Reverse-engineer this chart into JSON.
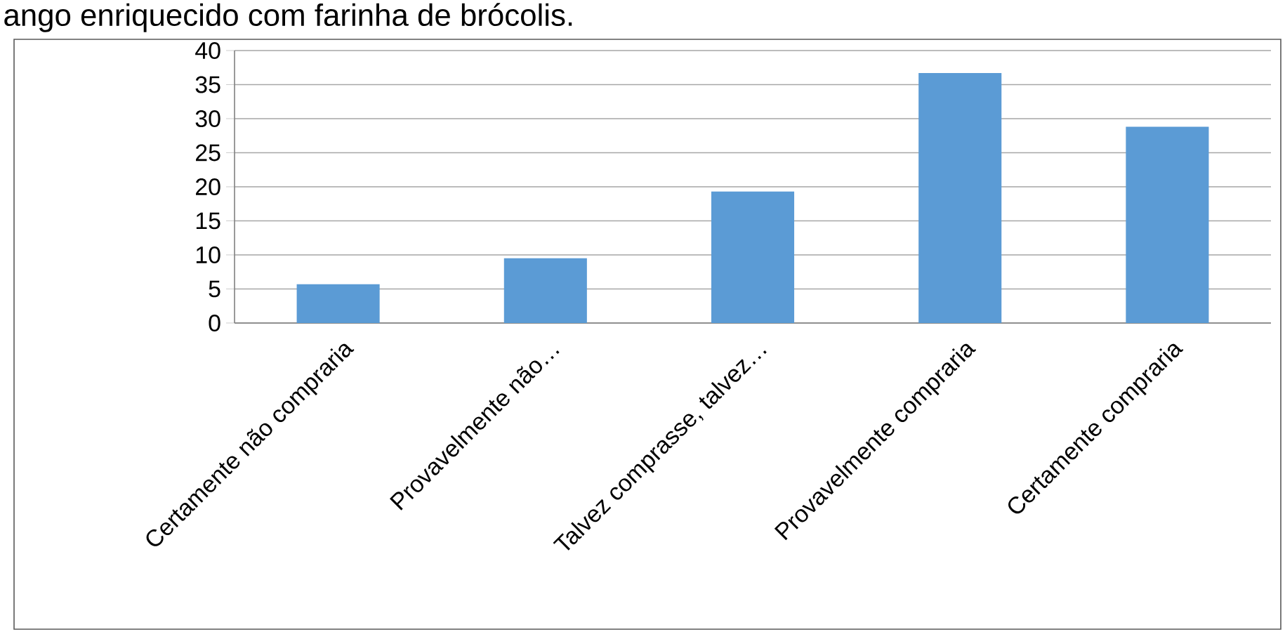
{
  "chart_data": {
    "type": "bar",
    "title": "ango enriquecido com farinha de brócolis.",
    "categories": [
      "Certamente não compraria",
      "Provavelmente não…",
      "Talvez comprasse, talvez…",
      "Provavelmente compraria",
      "Certamente compraria"
    ],
    "values": [
      5.7,
      9.5,
      19.3,
      36.7,
      28.8
    ],
    "color": "#5b9bd5",
    "ylim": [
      0,
      40
    ],
    "yticks": [
      0,
      5,
      10,
      15,
      20,
      25,
      30,
      35,
      40
    ],
    "grid": "y"
  }
}
